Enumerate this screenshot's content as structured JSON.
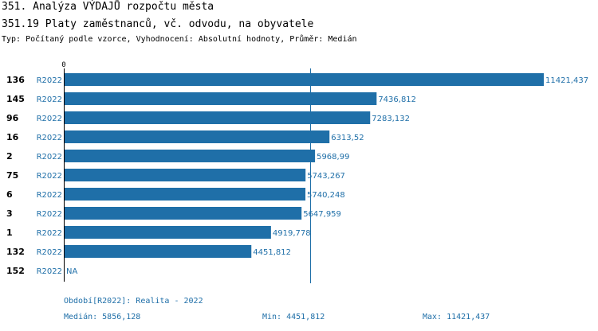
{
  "header": {
    "title": "351. Analýza VÝDAJŮ rozpočtu města",
    "subtitle": "351.19 Platy zaměstnanců, vč. odvodu, na obyvatele",
    "info": "Typ: Počítaný podle vzorce, Vyhodnocení: Absolutní hodnoty, Průměr: Medián"
  },
  "colors": {
    "bar": "#1f6fa8",
    "text_accent": "#1f6fa8",
    "median_line": "#1f6fa8",
    "axis": "#000000"
  },
  "chart_data": {
    "type": "bar",
    "orientation": "horizontal",
    "axis_tick_label": "0",
    "xlim": [
      0,
      11421.437
    ],
    "median": 5856.128,
    "rows": [
      {
        "id": "136",
        "period": "R2022",
        "value": 11421.437,
        "label": "11421,437"
      },
      {
        "id": "145",
        "period": "R2022",
        "value": 7436.812,
        "label": "7436,812"
      },
      {
        "id": "96",
        "period": "R2022",
        "value": 7283.132,
        "label": "7283,132"
      },
      {
        "id": "16",
        "period": "R2022",
        "value": 6313.52,
        "label": "6313,52"
      },
      {
        "id": "2",
        "period": "R2022",
        "value": 5968.99,
        "label": "5968,99"
      },
      {
        "id": "75",
        "period": "R2022",
        "value": 5743.267,
        "label": "5743,267"
      },
      {
        "id": "6",
        "period": "R2022",
        "value": 5740.248,
        "label": "5740,248"
      },
      {
        "id": "3",
        "period": "R2022",
        "value": 5647.959,
        "label": "5647,959"
      },
      {
        "id": "1",
        "period": "R2022",
        "value": 4919.778,
        "label": "4919,778"
      },
      {
        "id": "132",
        "period": "R2022",
        "value": 4451.812,
        "label": "4451,812"
      },
      {
        "id": "152",
        "period": "R2022",
        "value": null,
        "label": "NA"
      }
    ]
  },
  "footer": {
    "period": "Období[R2022]: Realita - 2022",
    "median": "Medián: 5856,128",
    "min": "Min: 4451,812",
    "max": "Max: 11421,437"
  }
}
